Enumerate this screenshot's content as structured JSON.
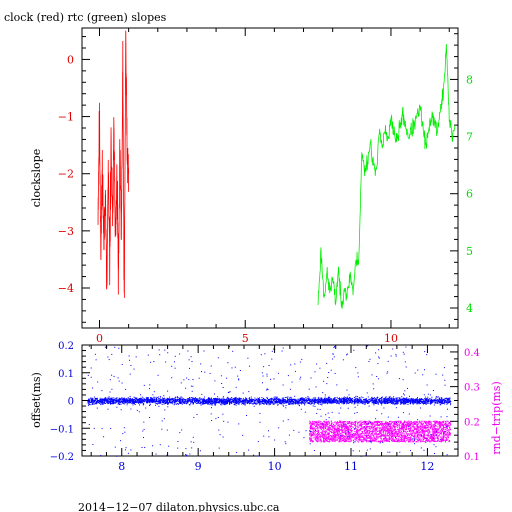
{
  "chart_data": [
    {
      "type": "line",
      "title": "clock (red) rtc (green) slopes",
      "xlabel": "",
      "ylabel": "clockslope",
      "x_range": [
        -0.6,
        12.3
      ],
      "x_ticks": [
        "0",
        "5",
        "10"
      ],
      "left_axis": {
        "range": [
          -4.7,
          0.55
        ],
        "ticks": [
          "0",
          "−1",
          "−2",
          "−3",
          "−4"
        ],
        "color": "#dd0000"
      },
      "right_axis": {
        "range": [
          3.65,
          8.9
        ],
        "ticks": [
          "4",
          "5",
          "6",
          "7",
          "8"
        ],
        "color": "#00dd00"
      },
      "series": [
        {
          "color": "#ff0000",
          "axis": "left",
          "x": [
            -0.05,
            0.0,
            0.05,
            0.1,
            0.15,
            0.2,
            0.25,
            0.3,
            0.35,
            0.4,
            0.45,
            0.5,
            0.55,
            0.6,
            0.65,
            0.7,
            0.75,
            0.8,
            0.85,
            0.9,
            0.95,
            1.0
          ],
          "y": [
            -2.6,
            -1.0,
            -3.4,
            -1.8,
            -3.3,
            -2.2,
            -4.1,
            -2.0,
            -3.6,
            -1.4,
            -3.0,
            -1.1,
            -3.2,
            -2.1,
            -3.9,
            -1.7,
            -3.1,
            -0.2,
            -4.4,
            0.4,
            -1.7,
            -2.0
          ]
        },
        {
          "color": "#00ee00",
          "axis": "right",
          "x": [
            7.5,
            7.6,
            7.7,
            7.8,
            7.9,
            8.0,
            8.1,
            8.2,
            8.3,
            8.4,
            8.5,
            8.6,
            8.7,
            8.8,
            8.9,
            9.0,
            9.1,
            9.2,
            9.3,
            9.4,
            9.5,
            9.6,
            9.7,
            9.8,
            9.9,
            10.0,
            10.2,
            10.4,
            10.6,
            10.8,
            11.0,
            11.2,
            11.4,
            11.6,
            11.8,
            11.9,
            12.0,
            12.1,
            12.2
          ],
          "y": [
            4.1,
            5.0,
            4.2,
            4.6,
            4.3,
            4.5,
            4.1,
            4.7,
            4.0,
            4.4,
            4.2,
            4.6,
            4.3,
            4.8,
            4.9,
            6.7,
            6.4,
            6.6,
            6.9,
            6.5,
            6.3,
            7.2,
            6.8,
            7.1,
            6.9,
            7.3,
            6.9,
            7.4,
            7.0,
            7.2,
            7.5,
            6.8,
            7.4,
            7.1,
            7.8,
            8.6,
            7.3,
            7.0,
            7.2
          ]
        }
      ]
    },
    {
      "type": "scatter",
      "xlabel": "",
      "x_range": [
        7.48,
        12.4
      ],
      "x_ticks": [
        "8",
        "9",
        "10",
        "11",
        "12"
      ],
      "left_axis": {
        "label": "offset(ms)",
        "range": [
          -0.2,
          0.2
        ],
        "ticks": [
          "0.2",
          "0.1",
          "0",
          "−0.1",
          "−0.2"
        ],
        "color": "#0000dd"
      },
      "right_axis": {
        "label": "rnd−trip(ms)",
        "range": [
          0.1,
          0.42
        ],
        "ticks": [
          "0.4",
          "0.3",
          "0.2",
          "0.1"
        ],
        "color": "#ee00ee"
      },
      "series": [
        {
          "color": "#0000ff",
          "axis": "left",
          "x_range": [
            7.55,
            12.3
          ],
          "band_center": 0.0,
          "band_halfwidth": 0.018,
          "outlier_range": [
            -0.2,
            0.2
          ]
        },
        {
          "color": "#ff00ff",
          "axis": "right",
          "x_range": [
            10.45,
            12.3
          ],
          "band_center": 0.172,
          "band_halfwidth": 0.03
        }
      ]
    }
  ],
  "footer": "2014−12−07  dilaton.physics.ubc.ca"
}
